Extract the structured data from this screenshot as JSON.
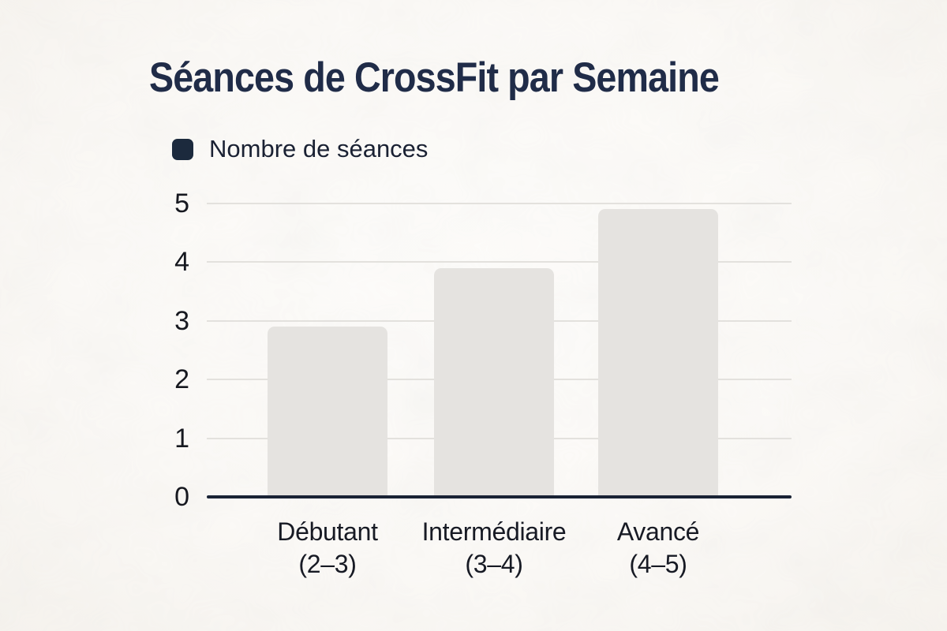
{
  "chart_data": {
    "type": "bar",
    "title": "Séances de CrossFit par Semaine",
    "legend_position": "top-left",
    "categories": [
      "Débutant (2–3)",
      "Intermédiaire (3–4)",
      "Avancé (4–5)"
    ],
    "category_lines": [
      [
        "Débutant",
        "(2–3)"
      ],
      [
        "Intermédiaire",
        "(3–4)"
      ],
      [
        "Avancé",
        "(4–5)"
      ]
    ],
    "series": [
      {
        "name": "Nombre de séances",
        "values": [
          2.9,
          3.9,
          4.9
        ]
      }
    ],
    "xlabel": "",
    "ylabel": "",
    "ylim": [
      0,
      5
    ],
    "yticks": [
      0,
      1,
      2,
      3,
      4,
      5
    ],
    "grid": "horizontal",
    "colors": {
      "bar": "#e5e3e0",
      "title": "#202c48",
      "legend_swatch": "#1c2a3d",
      "legend_text": "#1a2133",
      "axis": "#1a2335",
      "gridline": "#e3e1dd",
      "tick_text": "#16181f",
      "label_text": "#171a24"
    }
  }
}
